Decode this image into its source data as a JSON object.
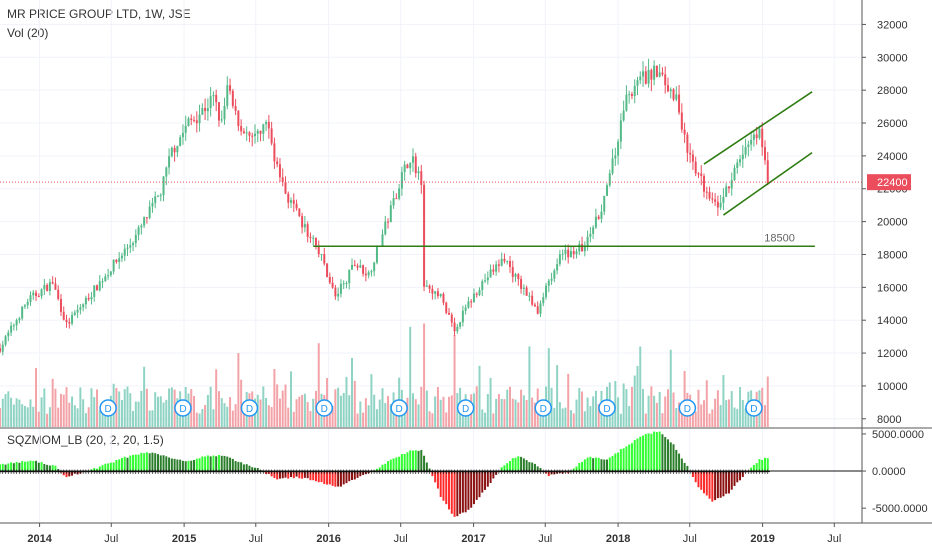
{
  "header": {
    "title": "MR PRICE GROUP LTD, 1W, JSE",
    "volume_label": "Vol (20)",
    "indicator_label": "SQZMOM_LB (20, 2, 20, 1.5)"
  },
  "colors": {
    "up": "#53b987",
    "down": "#eb4d5c",
    "vol_up": "#8fd3c4",
    "vol_down": "#f3a3a8",
    "trendline": "#2f7d12",
    "price_line": "#eb4d5c",
    "mom_bright_up": "#32ff32",
    "mom_dark_up": "#2a7d2a",
    "mom_bright_down": "#ff2a2a",
    "mom_dark_down": "#8b1010",
    "dividend": "#2196f3"
  },
  "chart_data": {
    "type": "candlestick",
    "title": "MR PRICE GROUP LTD, 1W, JSE",
    "x_axis": {
      "type": "date",
      "range": [
        "2013-09-23",
        "2019-09-09"
      ],
      "tick_labels": [
        "2014",
        "Jul",
        "2015",
        "Jul",
        "2016",
        "Jul",
        "2017",
        "Jul",
        "2018",
        "Jul",
        "2019",
        "Jul"
      ],
      "tick_dates": [
        "2014-01-01",
        "2014-07-01",
        "2015-01-01",
        "2015-07-01",
        "2016-01-01",
        "2016-07-01",
        "2017-01-01",
        "2017-07-01",
        "2018-01-01",
        "2018-07-01",
        "2019-01-01",
        "2019-07-01"
      ],
      "bold_labels": [
        "2014",
        "2015",
        "2016",
        "2017",
        "2018",
        "2019"
      ]
    },
    "price_axis": {
      "range": [
        7500,
        33000
      ],
      "ticks": [
        8000,
        10000,
        12000,
        14000,
        16000,
        18000,
        20000,
        22000,
        24000,
        26000,
        28000,
        30000,
        32000
      ]
    },
    "last_price": 22400,
    "price_path": [
      [
        "2013-09-23",
        12300
      ],
      [
        "2013-12-02",
        15200
      ],
      [
        "2014-02-03",
        16300
      ],
      [
        "2014-03-10",
        13700
      ],
      [
        "2014-06-02",
        16300
      ],
      [
        "2014-09-01",
        19100
      ],
      [
        "2014-11-03",
        21800
      ],
      [
        "2014-12-01",
        24300
      ],
      [
        "2015-01-12",
        26000
      ],
      [
        "2015-02-09",
        26600
      ],
      [
        "2015-03-16",
        27500
      ],
      [
        "2015-04-06",
        25900
      ],
      [
        "2015-04-20",
        28100
      ],
      [
        "2015-05-11",
        26400
      ],
      [
        "2015-06-22",
        24800
      ],
      [
        "2015-07-27",
        26000
      ],
      [
        "2015-09-07",
        22100
      ],
      [
        "2015-10-26",
        19800
      ],
      [
        "2015-12-07",
        18300
      ],
      [
        "2016-01-18",
        15400
      ],
      [
        "2016-03-07",
        17400
      ],
      [
        "2016-04-11",
        16800
      ],
      [
        "2016-05-23",
        19700
      ],
      [
        "2016-07-04",
        22800
      ],
      [
        "2016-07-25",
        24000
      ],
      [
        "2016-08-22",
        22600
      ],
      [
        "2016-08-29",
        16300
      ],
      [
        "2016-10-10",
        15400
      ],
      [
        "2016-11-14",
        13500
      ],
      [
        "2017-01-16",
        16100
      ],
      [
        "2017-03-20",
        17800
      ],
      [
        "2017-04-24",
        16300
      ],
      [
        "2017-06-12",
        14600
      ],
      [
        "2017-08-07",
        17900
      ],
      [
        "2017-10-09",
        18500
      ],
      [
        "2017-11-13",
        20400
      ],
      [
        "2017-12-11",
        22600
      ],
      [
        "2018-01-22",
        27600
      ],
      [
        "2018-03-05",
        28700
      ],
      [
        "2018-04-09",
        29100
      ],
      [
        "2018-05-28",
        27500
      ],
      [
        "2018-07-02",
        23700
      ],
      [
        "2018-08-06",
        22100
      ],
      [
        "2018-09-17",
        21000
      ],
      [
        "2018-10-22",
        23000
      ],
      [
        "2018-11-26",
        24800
      ],
      [
        "2018-12-24",
        25600
      ],
      [
        "2019-01-14",
        22400
      ]
    ],
    "hline": {
      "value": 18500,
      "label": "18500",
      "from": "2015-11-23",
      "to": "2019-05-13"
    },
    "channel_upper": [
      [
        "2018-08-06",
        23500
      ],
      [
        "2019-05-06",
        27900
      ]
    ],
    "channel_lower": [
      [
        "2018-09-24",
        20400
      ],
      [
        "2019-05-06",
        24200
      ]
    ],
    "volume": {
      "label": "Vol (20)",
      "spikes": [
        [
          "2016-07-25",
          13600
        ],
        [
          "2016-08-29",
          13800
        ],
        [
          "2016-11-14",
          13100
        ],
        [
          "2015-12-07",
          12600
        ],
        [
          "2017-05-22",
          12400
        ],
        [
          "2017-07-10",
          12300
        ],
        [
          "2018-02-26",
          12400
        ],
        [
          "2018-05-14",
          12200
        ],
        [
          "2016-02-29",
          11700
        ],
        [
          "2015-05-18",
          12000
        ]
      ]
    },
    "dividends": [
      "2014-06-23",
      "2014-12-29",
      "2015-06-15",
      "2015-12-21",
      "2016-06-27",
      "2016-12-12",
      "2017-06-26",
      "2017-12-04",
      "2018-06-25",
      "2018-12-10"
    ],
    "dividend_marker_label": "D",
    "momentum": {
      "label": "SQZMOM_LB (20, 2, 20, 1.5)",
      "axis_ticks": [
        5000,
        0,
        -5000
      ],
      "axis_labels": [
        "5000.0000",
        "0.0000",
        "-5000.0000"
      ],
      "range": [
        -7000,
        5800
      ],
      "path": [
        [
          "2013-09-23",
          900
        ],
        [
          "2013-12-16",
          1400
        ],
        [
          "2014-02-10",
          600
        ],
        [
          "2014-03-10",
          -800
        ],
        [
          "2014-05-19",
          300
        ],
        [
          "2014-07-28",
          1700
        ],
        [
          "2014-09-29",
          2600
        ],
        [
          "2014-11-17",
          2000
        ],
        [
          "2015-01-05",
          1300
        ],
        [
          "2015-02-23",
          2000
        ],
        [
          "2015-04-13",
          2100
        ],
        [
          "2015-05-25",
          1100
        ],
        [
          "2015-07-06",
          300
        ],
        [
          "2015-08-24",
          -1100
        ],
        [
          "2015-10-12",
          -800
        ],
        [
          "2015-11-30",
          -1300
        ],
        [
          "2016-01-25",
          -2200
        ],
        [
          "2016-03-14",
          -900
        ],
        [
          "2016-04-25",
          100
        ],
        [
          "2016-06-06",
          1500
        ],
        [
          "2016-07-18",
          2600
        ],
        [
          "2016-08-22",
          2900
        ],
        [
          "2016-09-12",
          300
        ],
        [
          "2016-10-10",
          -3400
        ],
        [
          "2016-11-14",
          -6200
        ],
        [
          "2016-12-19",
          -5300
        ],
        [
          "2017-02-13",
          -1600
        ],
        [
          "2017-03-20",
          900
        ],
        [
          "2017-04-24",
          2100
        ],
        [
          "2017-06-05",
          900
        ],
        [
          "2017-07-10",
          -600
        ],
        [
          "2017-08-28",
          -200
        ],
        [
          "2017-10-16",
          1900
        ],
        [
          "2017-12-04",
          1500
        ],
        [
          "2018-01-08",
          2900
        ],
        [
          "2018-03-05",
          4800
        ],
        [
          "2018-04-16",
          5400
        ],
        [
          "2018-05-21",
          3500
        ],
        [
          "2018-06-25",
          600
        ],
        [
          "2018-07-23",
          -2100
        ],
        [
          "2018-08-27",
          -4200
        ],
        [
          "2018-10-08",
          -2900
        ],
        [
          "2018-11-19",
          -300
        ],
        [
          "2018-12-24",
          1500
        ],
        [
          "2019-01-14",
          1800
        ]
      ]
    }
  }
}
